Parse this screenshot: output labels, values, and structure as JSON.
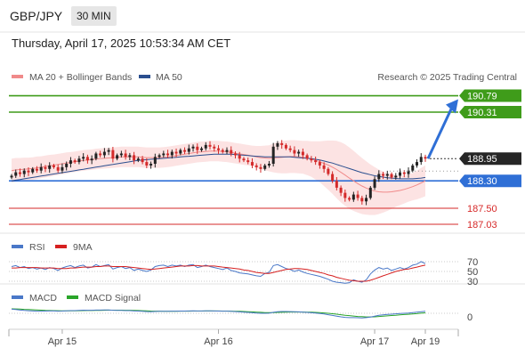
{
  "header": {
    "pair": "GBP/JPY",
    "timeframe": "30 MIN"
  },
  "datetime": "Thursday, April 17, 2025 10:53:34 AM CET",
  "legend_main": [
    {
      "label": "MA 20 + Bollinger Bands",
      "color": "#f08a8a"
    },
    {
      "label": "MA 50",
      "color": "#2b4f8f"
    }
  ],
  "copyright": "Research © 2025 Trading Central",
  "legend_rsi": [
    {
      "label": "RSI",
      "color": "#4a78c8"
    },
    {
      "label": "9MA",
      "color": "#d62020"
    }
  ],
  "legend_macd": [
    {
      "label": "MACD",
      "color": "#4a78c8"
    },
    {
      "label": "MACD Signal",
      "color": "#2aa52a"
    }
  ],
  "colors": {
    "up": "#222222",
    "down": "#d42a2a",
    "green": "#3f9c1a",
    "blue": "#2f6fd6",
    "red_level": "#d62828",
    "price_bg": "#262626"
  },
  "chart_data": {
    "type": "candlestick",
    "x_labels": [
      "Apr 15",
      "Apr 16",
      "Apr 17",
      "Apr 19"
    ],
    "ylim": [
      186.8,
      191.4
    ],
    "current_price": 188.95,
    "levels": [
      {
        "value": 190.79,
        "label": "190.79",
        "kind": "resistance"
      },
      {
        "value": 190.31,
        "label": "190.31",
        "kind": "resistance"
      },
      {
        "value": 188.3,
        "label": "188.30",
        "kind": "pivot"
      },
      {
        "value": 187.5,
        "label": "187.50",
        "kind": "support"
      },
      {
        "value": 187.03,
        "label": "187.03",
        "kind": "support"
      }
    ],
    "close": [
      188.45,
      188.55,
      188.5,
      188.6,
      188.55,
      188.65,
      188.6,
      188.7,
      188.65,
      188.75,
      188.7,
      188.6,
      188.7,
      188.8,
      188.9,
      188.85,
      188.95,
      189.0,
      188.9,
      188.95,
      189.1,
      189.05,
      189.15,
      189.2,
      188.95,
      189.05,
      189.1,
      189.0,
      189.05,
      188.9,
      188.95,
      188.85,
      188.75,
      188.8,
      189.0,
      189.05,
      189.1,
      189.05,
      189.15,
      189.1,
      189.2,
      189.15,
      189.25,
      189.3,
      189.2,
      189.25,
      189.35,
      189.3,
      189.25,
      189.2,
      189.15,
      189.2,
      189.1,
      189.05,
      188.95,
      188.9,
      188.85,
      188.75,
      188.7,
      188.65,
      188.75,
      188.8,
      189.3,
      189.4,
      189.35,
      189.25,
      189.2,
      189.1,
      189.15,
      189.05,
      188.95,
      188.9,
      188.85,
      188.75,
      188.65,
      188.5,
      188.3,
      188.1,
      187.95,
      187.8,
      187.75,
      187.9,
      187.8,
      187.7,
      187.8,
      188.1,
      188.35,
      188.5,
      188.45,
      188.5,
      188.4,
      188.45,
      188.55,
      188.5,
      188.6,
      188.75,
      188.85,
      189.0,
      188.95
    ],
    "ma20": [
      188.6,
      188.62,
      188.63,
      188.64,
      188.65,
      188.66,
      188.68,
      188.7,
      188.72,
      188.74,
      188.76,
      188.78,
      188.8,
      188.82,
      188.84,
      188.86,
      188.88,
      188.9,
      188.91,
      188.92,
      188.94,
      188.95,
      188.96,
      188.97,
      188.98,
      188.99,
      189.0,
      189.0,
      189.0,
      189.0,
      189.0,
      188.99,
      188.98,
      188.98,
      188.98,
      188.98,
      188.99,
      189.0,
      189.02,
      189.04,
      189.06,
      189.08,
      189.1,
      189.12,
      189.14,
      189.15,
      189.16,
      189.17,
      189.17,
      189.17,
      189.16,
      189.15,
      189.13,
      189.11,
      189.09,
      189.07,
      189.05,
      189.03,
      189.0,
      188.98,
      188.97,
      188.96,
      188.97,
      188.98,
      188.99,
      189.0,
      189.01,
      189.01,
      189.0,
      188.99,
      188.97,
      188.94,
      188.9,
      188.86,
      188.81,
      188.76,
      188.7,
      188.63,
      188.55,
      188.47,
      188.38,
      188.3,
      188.22,
      188.15,
      188.09,
      188.04,
      188.0,
      187.98,
      187.97,
      187.97,
      187.98,
      188.0,
      188.02,
      188.05,
      188.09,
      188.13,
      188.18,
      188.24,
      188.3
    ],
    "ma50": [
      188.3,
      188.32,
      188.34,
      188.36,
      188.38,
      188.4,
      188.42,
      188.44,
      188.46,
      188.48,
      188.5,
      188.52,
      188.54,
      188.56,
      188.58,
      188.6,
      188.62,
      188.64,
      188.66,
      188.68,
      188.7,
      188.72,
      188.74,
      188.76,
      188.78,
      188.8,
      188.82,
      188.84,
      188.86,
      188.88,
      188.9,
      188.91,
      188.92,
      188.93,
      188.94,
      188.95,
      188.96,
      188.97,
      188.98,
      188.99,
      189.0,
      189.01,
      189.02,
      189.03,
      189.04,
      189.05,
      189.06,
      189.07,
      189.08,
      189.08,
      189.08,
      189.08,
      189.08,
      189.07,
      189.06,
      189.05,
      189.04,
      189.03,
      189.02,
      189.01,
      189.0,
      189.0,
      189.0,
      189.0,
      189.0,
      189.0,
      189.0,
      188.99,
      188.98,
      188.97,
      188.96,
      188.95,
      188.93,
      188.91,
      188.88,
      188.85,
      188.82,
      188.78,
      188.74,
      188.7,
      188.66,
      188.62,
      188.58,
      188.54,
      188.51,
      188.48,
      188.45,
      188.43,
      188.41,
      188.39,
      188.38,
      188.37,
      188.36,
      188.36,
      188.36,
      188.36,
      188.37,
      188.38,
      188.4
    ],
    "bb_width": [
      0.35,
      0.35,
      0.34,
      0.34,
      0.33,
      0.33,
      0.33,
      0.32,
      0.32,
      0.32,
      0.31,
      0.31,
      0.31,
      0.31,
      0.3,
      0.3,
      0.3,
      0.3,
      0.3,
      0.3,
      0.3,
      0.3,
      0.3,
      0.3,
      0.3,
      0.3,
      0.3,
      0.3,
      0.3,
      0.3,
      0.3,
      0.3,
      0.3,
      0.3,
      0.3,
      0.3,
      0.3,
      0.3,
      0.3,
      0.3,
      0.3,
      0.3,
      0.3,
      0.3,
      0.3,
      0.3,
      0.3,
      0.3,
      0.3,
      0.3,
      0.3,
      0.3,
      0.3,
      0.3,
      0.3,
      0.3,
      0.3,
      0.3,
      0.32,
      0.34,
      0.36,
      0.38,
      0.42,
      0.45,
      0.47,
      0.48,
      0.48,
      0.48,
      0.48,
      0.48,
      0.5,
      0.52,
      0.56,
      0.6,
      0.66,
      0.72,
      0.78,
      0.84,
      0.88,
      0.9,
      0.9,
      0.88,
      0.85,
      0.82,
      0.78,
      0.74,
      0.7,
      0.65,
      0.6,
      0.55,
      0.5,
      0.46,
      0.43,
      0.41,
      0.4,
      0.4,
      0.42,
      0.44,
      0.45
    ],
    "rsi": {
      "ylim": [
        20,
        80
      ],
      "ticks": [
        70,
        50,
        30
      ],
      "rsi": [
        60,
        62,
        58,
        60,
        56,
        58,
        55,
        57,
        54,
        58,
        56,
        52,
        57,
        60,
        62,
        58,
        61,
        63,
        57,
        59,
        64,
        60,
        62,
        64,
        55,
        58,
        60,
        56,
        58,
        52,
        55,
        52,
        50,
        53,
        60,
        62,
        63,
        60,
        63,
        61,
        63,
        60,
        63,
        64,
        58,
        60,
        63,
        60,
        58,
        56,
        54,
        57,
        52,
        50,
        47,
        46,
        45,
        43,
        41,
        40,
        46,
        48,
        62,
        64,
        60,
        56,
        54,
        50,
        53,
        49,
        46,
        44,
        42,
        40,
        37,
        34,
        30,
        28,
        27,
        26,
        27,
        33,
        30,
        28,
        33,
        45,
        53,
        58,
        55,
        57,
        52,
        55,
        58,
        55,
        58,
        63,
        65,
        70,
        66
      ],
      "ma9": [
        57,
        57,
        58,
        58,
        58,
        58,
        58,
        57,
        57,
        57,
        57,
        56,
        56,
        56,
        57,
        57,
        58,
        59,
        59,
        59,
        60,
        60,
        61,
        61,
        60,
        60,
        60,
        60,
        59,
        58,
        57,
        56,
        55,
        54,
        55,
        56,
        57,
        58,
        59,
        60,
        61,
        61,
        61,
        62,
        62,
        61,
        61,
        61,
        61,
        60,
        59,
        58,
        57,
        56,
        55,
        53,
        52,
        50,
        48,
        47,
        46,
        46,
        48,
        50,
        52,
        54,
        55,
        56,
        56,
        55,
        54,
        52,
        50,
        48,
        46,
        43,
        41,
        38,
        36,
        34,
        32,
        31,
        30,
        30,
        30,
        32,
        35,
        38,
        41,
        44,
        47,
        50,
        52,
        54,
        55,
        57,
        59,
        61,
        63
      ]
    },
    "macd": {
      "zero": 0,
      "ticks": [
        0
      ],
      "macd": [
        0.38,
        0.35,
        0.3,
        0.27,
        0.24,
        0.22,
        0.2,
        0.2,
        0.21,
        0.22,
        0.22,
        0.2,
        0.21,
        0.23,
        0.25,
        0.25,
        0.27,
        0.29,
        0.28,
        0.28,
        0.3,
        0.3,
        0.31,
        0.32,
        0.28,
        0.27,
        0.27,
        0.25,
        0.25,
        0.22,
        0.21,
        0.19,
        0.16,
        0.15,
        0.17,
        0.18,
        0.19,
        0.19,
        0.2,
        0.2,
        0.21,
        0.21,
        0.22,
        0.23,
        0.22,
        0.22,
        0.23,
        0.23,
        0.22,
        0.21,
        0.2,
        0.2,
        0.18,
        0.16,
        0.13,
        0.11,
        0.08,
        0.05,
        0.02,
        0,
        0,
        0.01,
        0.09,
        0.15,
        0.17,
        0.17,
        0.16,
        0.14,
        0.13,
        0.11,
        0.08,
        0.05,
        0.02,
        -0.02,
        -0.07,
        -0.13,
        -0.2,
        -0.27,
        -0.33,
        -0.38,
        -0.41,
        -0.41,
        -0.42,
        -0.43,
        -0.41,
        -0.35,
        -0.27,
        -0.19,
        -0.14,
        -0.1,
        -0.08,
        -0.05,
        -0.02,
        0,
        0.02,
        0.06,
        0.1,
        0.15,
        0.18
      ],
      "signal": [
        0.42,
        0.41,
        0.39,
        0.37,
        0.35,
        0.33,
        0.31,
        0.29,
        0.27,
        0.26,
        0.25,
        0.24,
        0.23,
        0.23,
        0.23,
        0.23,
        0.24,
        0.25,
        0.26,
        0.26,
        0.27,
        0.27,
        0.28,
        0.29,
        0.29,
        0.29,
        0.29,
        0.28,
        0.28,
        0.27,
        0.26,
        0.24,
        0.23,
        0.21,
        0.2,
        0.2,
        0.19,
        0.19,
        0.19,
        0.19,
        0.2,
        0.2,
        0.2,
        0.21,
        0.21,
        0.21,
        0.22,
        0.22,
        0.22,
        0.22,
        0.21,
        0.21,
        0.2,
        0.19,
        0.18,
        0.17,
        0.15,
        0.13,
        0.11,
        0.09,
        0.07,
        0.06,
        0.06,
        0.08,
        0.09,
        0.11,
        0.12,
        0.12,
        0.12,
        0.12,
        0.11,
        0.1,
        0.08,
        0.06,
        0.03,
        0,
        -0.04,
        -0.08,
        -0.13,
        -0.18,
        -0.22,
        -0.26,
        -0.3,
        -0.32,
        -0.34,
        -0.34,
        -0.33,
        -0.3,
        -0.27,
        -0.24,
        -0.21,
        -0.18,
        -0.15,
        -0.12,
        -0.09,
        -0.06,
        -0.03,
        0.01,
        0.04
      ]
    }
  }
}
